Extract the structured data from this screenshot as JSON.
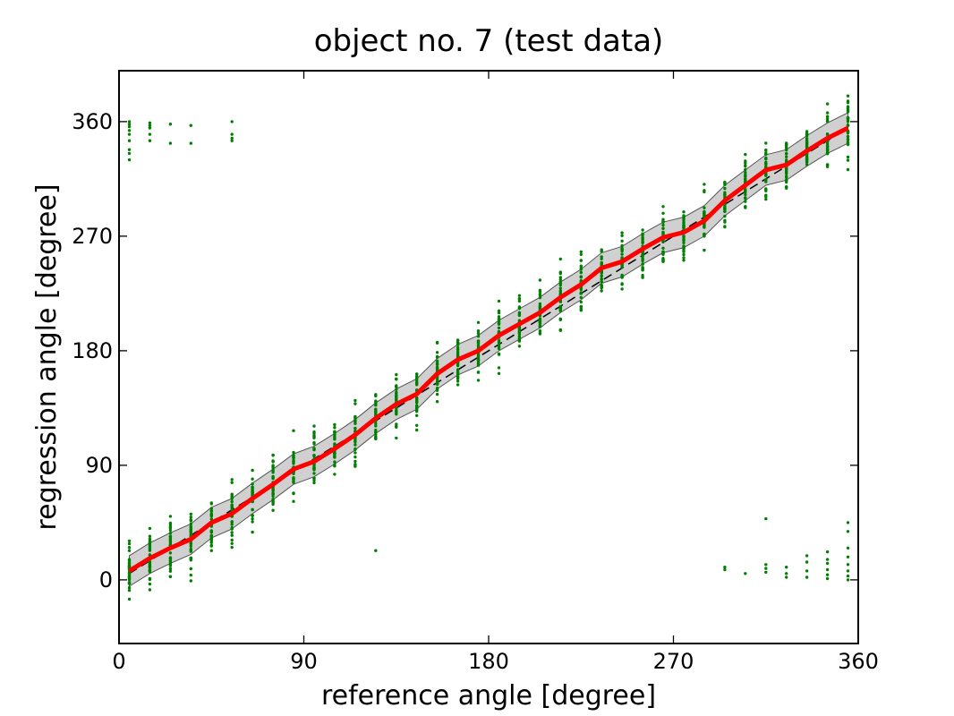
{
  "chart_data": {
    "type": "scatter",
    "title": "object no. 7 (test data)",
    "xlabel": "reference angle [degree]",
    "ylabel": "regression angle [degree]",
    "xlim": [
      0,
      360
    ],
    "ylim": [
      -50,
      400
    ],
    "xticks": [
      0,
      90,
      180,
      270,
      360
    ],
    "yticks": [
      0,
      90,
      180,
      270,
      360
    ],
    "grid": false,
    "colors": {
      "scatter": "#008000",
      "mean": "#ff0000",
      "band": "#c0c0c0",
      "diagonal": "#000000"
    },
    "sample_x": [
      5,
      15,
      25,
      35,
      45,
      55,
      65,
      75,
      85,
      95,
      105,
      115,
      125,
      135,
      145,
      155,
      165,
      175,
      185,
      195,
      205,
      215,
      225,
      235,
      245,
      255,
      265,
      275,
      285,
      295,
      305,
      315,
      325,
      335,
      345,
      355
    ],
    "mean": [
      7,
      17,
      25,
      32,
      45,
      52,
      64,
      75,
      87,
      93,
      103,
      114,
      127,
      138,
      146,
      162,
      173,
      180,
      192,
      201,
      210,
      222,
      232,
      245,
      250,
      260,
      269,
      273,
      282,
      298,
      310,
      322,
      326,
      337,
      347,
      355
    ],
    "band_half_width": 12,
    "diagonal": [
      [
        5,
        5
      ],
      [
        355,
        355
      ]
    ],
    "outliers": [
      [
        5,
        330
      ],
      [
        5,
        335
      ],
      [
        5,
        338
      ],
      [
        5,
        345
      ],
      [
        5,
        350
      ],
      [
        5,
        353
      ],
      [
        5,
        356
      ],
      [
        5,
        358
      ],
      [
        5,
        360
      ],
      [
        15,
        345
      ],
      [
        15,
        350
      ],
      [
        15,
        355
      ],
      [
        15,
        357
      ],
      [
        15,
        359
      ],
      [
        25,
        343
      ],
      [
        25,
        358
      ],
      [
        35,
        343
      ],
      [
        35,
        357
      ],
      [
        55,
        345
      ],
      [
        55,
        347
      ],
      [
        55,
        350
      ],
      [
        55,
        360
      ],
      [
        125,
        23
      ],
      [
        295,
        8
      ],
      [
        295,
        10
      ],
      [
        305,
        5
      ],
      [
        315,
        6
      ],
      [
        315,
        9
      ],
      [
        315,
        12
      ],
      [
        315,
        48
      ],
      [
        325,
        2
      ],
      [
        325,
        5
      ],
      [
        325,
        10
      ],
      [
        335,
        2
      ],
      [
        335,
        7
      ],
      [
        335,
        14
      ],
      [
        335,
        19
      ],
      [
        345,
        1
      ],
      [
        345,
        4
      ],
      [
        345,
        8
      ],
      [
        345,
        13
      ],
      [
        345,
        16
      ],
      [
        345,
        22
      ],
      [
        355,
        0
      ],
      [
        355,
        3
      ],
      [
        355,
        7
      ],
      [
        355,
        12
      ],
      [
        355,
        18
      ],
      [
        355,
        25
      ],
      [
        355,
        38
      ],
      [
        355,
        45
      ]
    ]
  }
}
